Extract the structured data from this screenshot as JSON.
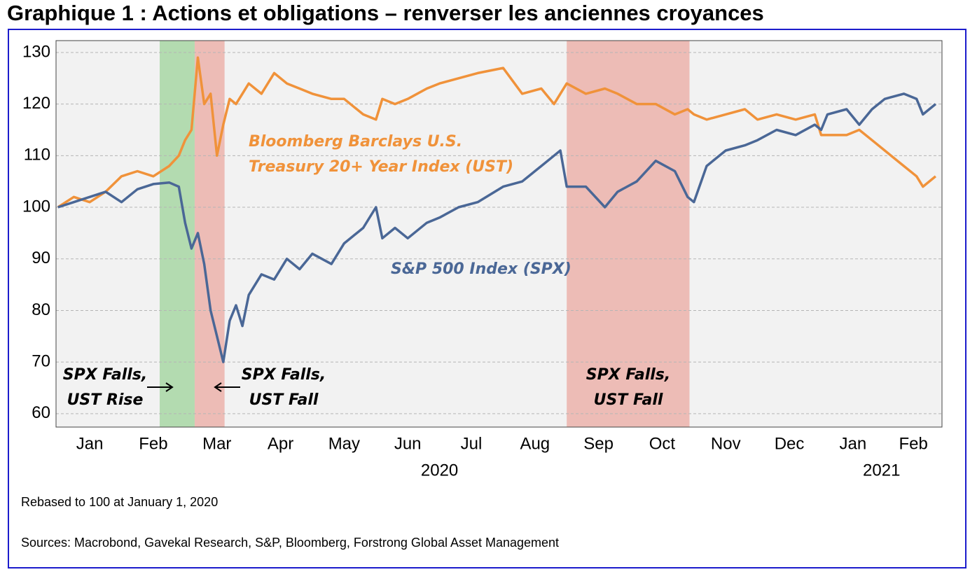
{
  "chart_data": {
    "type": "line",
    "title": "Graphique 1 : Actions et obligations – renverser les anciennes croyances",
    "x": [
      0,
      0.25,
      0.5,
      0.75,
      1,
      1.25,
      1.5,
      1.75,
      1.9,
      2,
      2.1,
      2.2,
      2.3,
      2.4,
      2.5,
      2.6,
      2.7,
      2.8,
      2.9,
      3,
      3.2,
      3.4,
      3.6,
      3.8,
      4,
      4.3,
      4.5,
      4.8,
      5,
      5.1,
      5.3,
      5.5,
      5.8,
      6,
      6.3,
      6.6,
      7,
      7.3,
      7.6,
      7.8,
      7.9,
      8,
      8.3,
      8.6,
      8.8,
      9.1,
      9.4,
      9.7,
      9.9,
      10,
      10.2,
      10.5,
      10.8,
      11,
      11.3,
      11.6,
      11.9,
      12,
      12.1,
      12.4,
      12.6,
      12.8,
      13,
      13.3,
      13.5,
      13.6,
      13.8
    ],
    "series": [
      {
        "name": "Bloomberg Barclays U.S. Treasury 20+ Year Index (UST)",
        "color": "#f0923a",
        "values": [
          100,
          102,
          101,
          103,
          106,
          107,
          106,
          108,
          110,
          113,
          115,
          129,
          120,
          122,
          110,
          116,
          121,
          120,
          122,
          124,
          122,
          126,
          124,
          123,
          122,
          121,
          121,
          118,
          117,
          121,
          120,
          121,
          123,
          124,
          125,
          126,
          127,
          122,
          123,
          120,
          122,
          124,
          122,
          123,
          122,
          120,
          120,
          118,
          119,
          118,
          117,
          118,
          119,
          117,
          118,
          117,
          118,
          114,
          114,
          114,
          115,
          113,
          111,
          108,
          106,
          104,
          106
        ]
      },
      {
        "name": "S&P 500 Index (SPX)",
        "color": "#4a6796",
        "values": [
          100,
          101,
          102,
          103,
          101,
          103.5,
          104.5,
          104.8,
          104,
          97,
          92,
          95,
          89,
          80,
          75,
          70,
          78,
          81,
          77,
          83,
          87,
          86,
          90,
          88,
          91,
          89,
          93,
          96,
          100,
          94,
          96,
          94,
          97,
          98,
          100,
          101,
          104,
          105,
          108,
          110,
          111,
          104,
          104,
          100,
          103,
          105,
          109,
          107,
          102,
          101,
          108,
          111,
          112,
          113,
          115,
          114,
          116,
          115,
          118,
          119,
          116,
          119,
          121,
          122,
          121,
          118,
          120
        ]
      }
    ],
    "xlim": [
      -0.03,
      13.9
    ],
    "xticks": [
      {
        "value": 0.5,
        "label": "Jan"
      },
      {
        "value": 1.5,
        "label": "Feb"
      },
      {
        "value": 2.5,
        "label": "Mar"
      },
      {
        "value": 3.5,
        "label": "Apr"
      },
      {
        "value": 4.5,
        "label": "May"
      },
      {
        "value": 5.5,
        "label": "Jun"
      },
      {
        "value": 6.5,
        "label": "Jul"
      },
      {
        "value": 7.5,
        "label": "Aug"
      },
      {
        "value": 8.5,
        "label": "Sep"
      },
      {
        "value": 9.5,
        "label": "Oct"
      },
      {
        "value": 10.5,
        "label": "Nov"
      },
      {
        "value": 11.5,
        "label": "Dec"
      },
      {
        "value": 12.5,
        "label": "Jan"
      },
      {
        "value": 13.45,
        "label": "Feb"
      }
    ],
    "year_ticks": [
      {
        "value": 6,
        "label": "2020"
      },
      {
        "value": 12.95,
        "label": "2021"
      }
    ],
    "ylim": [
      57.4,
      132.3
    ],
    "yticks": [
      60,
      70,
      80,
      90,
      100,
      110,
      120,
      130
    ],
    "grid": true,
    "highlights": [
      {
        "start": 1.6,
        "end": 2.15,
        "color": "#b3dbb0"
      },
      {
        "start": 2.15,
        "end": 2.62,
        "color": "#edbcb6"
      },
      {
        "start": 8.0,
        "end": 9.93,
        "color": "#edbcb6"
      }
    ],
    "annotations": [
      "SPX Falls, UST Rise",
      "SPX Falls, UST Fall",
      "SPX Falls, UST Fall"
    ],
    "notes": [
      "Rebased to 100 at January 1, 2020",
      "Sources: Macrobond, Gavekal Research, S&P, Bloomberg, Forstrong Global Asset Management"
    ]
  }
}
